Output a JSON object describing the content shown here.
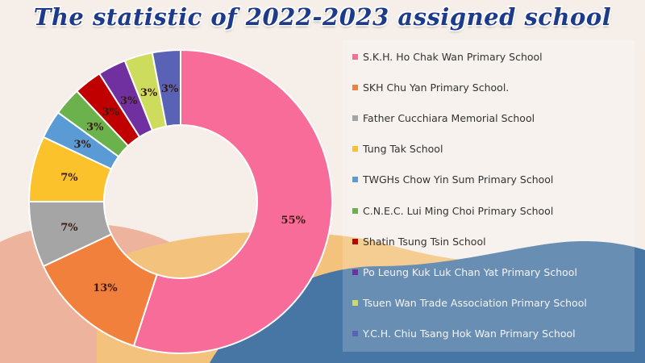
{
  "title": "The statistic of 2022-2023 assigned school",
  "chart_data": {
    "type": "pie",
    "hole": "donut",
    "legend_position": "right",
    "categories": [
      "S.K.H. Ho Chak Wan Primary School",
      "SKH Chu Yan Primary School.",
      "Father Cucchiara Memorial School",
      "Tung Tak School",
      "TWGHs Chow Yin Sum Primary School",
      "C.N.E.C. Lui Ming Choi Primary School",
      "Shatin Tsung Tsin School",
      "Po Leung Kuk Luk Chan Yat Primary School",
      "Tsuen Wan Trade Association Primary School",
      "Y.C.H. Chiu Tsang Hok Wan Primary School"
    ],
    "values": [
      55,
      13,
      7,
      7,
      3,
      3,
      3,
      3,
      3,
      3
    ],
    "data_labels": [
      "55%",
      "13%",
      "7%",
      "7%",
      "3%",
      "3%",
      "3%",
      "3%",
      "3%",
      "3%"
    ],
    "colors": [
      "#f86c9a",
      "#f0803c",
      "#a5a5a5",
      "#fcc22c",
      "#5b9bd5",
      "#6bb24c",
      "#c00000",
      "#7030a0",
      "#cddc5c",
      "#5a62b6"
    ]
  },
  "colors": {
    "title": "#1e3a8a",
    "background": "#f6efe9"
  }
}
